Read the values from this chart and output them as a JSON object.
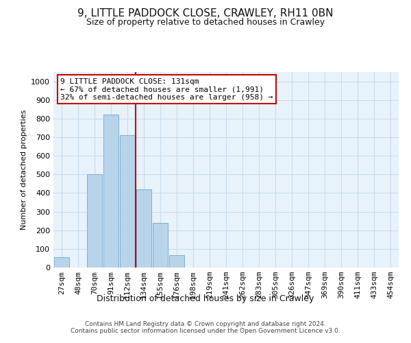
{
  "title": "9, LITTLE PADDOCK CLOSE, CRAWLEY, RH11 0BN",
  "subtitle": "Size of property relative to detached houses in Crawley",
  "xlabel": "Distribution of detached houses by size in Crawley",
  "ylabel": "Number of detached properties",
  "bar_color": "#b8d4ea",
  "bar_edge_color": "#7aafd4",
  "categories": [
    "27sqm",
    "48sqm",
    "70sqm",
    "91sqm",
    "112sqm",
    "134sqm",
    "155sqm",
    "176sqm",
    "198sqm",
    "219sqm",
    "241sqm",
    "262sqm",
    "283sqm",
    "305sqm",
    "326sqm",
    "347sqm",
    "369sqm",
    "390sqm",
    "411sqm",
    "433sqm",
    "454sqm"
  ],
  "values": [
    55,
    0,
    500,
    820,
    710,
    420,
    240,
    65,
    0,
    0,
    0,
    0,
    0,
    0,
    0,
    0,
    0,
    0,
    0,
    0,
    0
  ],
  "vline_x": 4.5,
  "vline_color": "#cc0000",
  "annotation_text": "9 LITTLE PADDOCK CLOSE: 131sqm\n← 67% of detached houses are smaller (1,991)\n32% of semi-detached houses are larger (958) →",
  "annotation_box_color": "#cc0000",
  "ylim": [
    0,
    1050
  ],
  "yticks": [
    0,
    100,
    200,
    300,
    400,
    500,
    600,
    700,
    800,
    900,
    1000
  ],
  "grid_color": "#c8dded",
  "background_color": "#e8f2fa",
  "footer_text": "Contains HM Land Registry data © Crown copyright and database right 2024.\nContains public sector information licensed under the Open Government Licence v3.0.",
  "fig_bg_color": "#ffffff",
  "title_fontsize": 11,
  "subtitle_fontsize": 9,
  "ylabel_fontsize": 8,
  "xlabel_fontsize": 9,
  "tick_fontsize": 8,
  "ann_fontsize": 8
}
